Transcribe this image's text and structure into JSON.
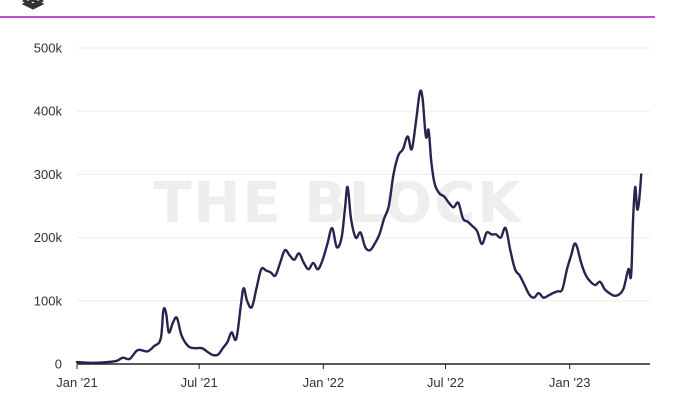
{
  "colors": {
    "accent_rule": "#b010b8",
    "line": "#2a2350",
    "grid": "#ececec",
    "axis": "#222222",
    "text": "#333333",
    "watermark": "#eeeeee",
    "logo": "#333333"
  },
  "icons": {
    "logo": "the-block-logo-icon"
  },
  "watermark_text": "THE BLOCK",
  "chart_data": {
    "type": "line",
    "title": "",
    "xlabel": "",
    "ylabel": "",
    "x_range": [
      "2021-01-01",
      "2023-04-30"
    ],
    "ylim": [
      0,
      500000
    ],
    "grid": true,
    "legend": "none",
    "y_ticks": [
      {
        "value": 0,
        "label": "0"
      },
      {
        "value": 100000,
        "label": "100k"
      },
      {
        "value": 200000,
        "label": "200k"
      },
      {
        "value": 300000,
        "label": "300k"
      },
      {
        "value": 400000,
        "label": "400k"
      },
      {
        "value": 500000,
        "label": "500k"
      }
    ],
    "x_ticks": [
      {
        "date": "2021-01-01",
        "label": "Jan '21"
      },
      {
        "date": "2021-07-01",
        "label": "Jul '21"
      },
      {
        "date": "2022-01-01",
        "label": "Jan '22"
      },
      {
        "date": "2022-07-01",
        "label": "Jul '22"
      },
      {
        "date": "2023-01-01",
        "label": "Jan '23"
      }
    ],
    "series": [
      {
        "name": "",
        "color": "#2a2350",
        "points": [
          [
            "2021-01-01",
            3000
          ],
          [
            "2021-01-15",
            2000
          ],
          [
            "2021-02-01",
            2000
          ],
          [
            "2021-02-15",
            3000
          ],
          [
            "2021-03-01",
            5000
          ],
          [
            "2021-03-10",
            10000
          ],
          [
            "2021-03-20",
            8000
          ],
          [
            "2021-04-01",
            22000
          ],
          [
            "2021-04-15",
            20000
          ],
          [
            "2021-04-25",
            28000
          ],
          [
            "2021-05-05",
            40000
          ],
          [
            "2021-05-09",
            85000
          ],
          [
            "2021-05-13",
            80000
          ],
          [
            "2021-05-17",
            50000
          ],
          [
            "2021-05-23",
            65000
          ],
          [
            "2021-05-29",
            73000
          ],
          [
            "2021-06-05",
            45000
          ],
          [
            "2021-06-15",
            28000
          ],
          [
            "2021-06-25",
            25000
          ],
          [
            "2021-07-05",
            25000
          ],
          [
            "2021-07-15",
            18000
          ],
          [
            "2021-07-22",
            14000
          ],
          [
            "2021-07-29",
            15000
          ],
          [
            "2021-08-05",
            25000
          ],
          [
            "2021-08-12",
            35000
          ],
          [
            "2021-08-18",
            50000
          ],
          [
            "2021-08-25",
            40000
          ],
          [
            "2021-09-01",
            95000
          ],
          [
            "2021-09-05",
            120000
          ],
          [
            "2021-09-10",
            100000
          ],
          [
            "2021-09-17",
            90000
          ],
          [
            "2021-09-24",
            120000
          ],
          [
            "2021-10-01",
            150000
          ],
          [
            "2021-10-08",
            148000
          ],
          [
            "2021-10-15",
            145000
          ],
          [
            "2021-10-22",
            140000
          ],
          [
            "2021-10-29",
            160000
          ],
          [
            "2021-11-05",
            180000
          ],
          [
            "2021-11-12",
            172000
          ],
          [
            "2021-11-19",
            165000
          ],
          [
            "2021-11-26",
            175000
          ],
          [
            "2021-12-03",
            160000
          ],
          [
            "2021-12-10",
            150000
          ],
          [
            "2021-12-17",
            160000
          ],
          [
            "2021-12-24",
            150000
          ],
          [
            "2021-12-31",
            165000
          ],
          [
            "2022-01-07",
            190000
          ],
          [
            "2022-01-14",
            215000
          ],
          [
            "2022-01-21",
            185000
          ],
          [
            "2022-01-28",
            200000
          ],
          [
            "2022-02-02",
            245000
          ],
          [
            "2022-02-06",
            280000
          ],
          [
            "2022-02-11",
            230000
          ],
          [
            "2022-02-18",
            200000
          ],
          [
            "2022-02-25",
            208000
          ],
          [
            "2022-03-04",
            185000
          ],
          [
            "2022-03-11",
            180000
          ],
          [
            "2022-03-18",
            190000
          ],
          [
            "2022-03-25",
            205000
          ],
          [
            "2022-04-01",
            230000
          ],
          [
            "2022-04-08",
            250000
          ],
          [
            "2022-04-15",
            300000
          ],
          [
            "2022-04-22",
            330000
          ],
          [
            "2022-04-29",
            340000
          ],
          [
            "2022-05-06",
            360000
          ],
          [
            "2022-05-12",
            340000
          ],
          [
            "2022-05-19",
            390000
          ],
          [
            "2022-05-24",
            430000
          ],
          [
            "2022-05-28",
            420000
          ],
          [
            "2022-06-02",
            360000
          ],
          [
            "2022-06-06",
            370000
          ],
          [
            "2022-06-10",
            320000
          ],
          [
            "2022-06-15",
            285000
          ],
          [
            "2022-06-22",
            270000
          ],
          [
            "2022-06-29",
            265000
          ],
          [
            "2022-07-06",
            255000
          ],
          [
            "2022-07-13",
            248000
          ],
          [
            "2022-07-20",
            255000
          ],
          [
            "2022-07-27",
            230000
          ],
          [
            "2022-08-03",
            225000
          ],
          [
            "2022-08-10",
            218000
          ],
          [
            "2022-08-17",
            210000
          ],
          [
            "2022-08-24",
            190000
          ],
          [
            "2022-08-31",
            208000
          ],
          [
            "2022-09-07",
            205000
          ],
          [
            "2022-09-14",
            205000
          ],
          [
            "2022-09-21",
            200000
          ],
          [
            "2022-09-28",
            215000
          ],
          [
            "2022-10-05",
            180000
          ],
          [
            "2022-10-12",
            150000
          ],
          [
            "2022-10-19",
            140000
          ],
          [
            "2022-10-26",
            125000
          ],
          [
            "2022-11-02",
            110000
          ],
          [
            "2022-11-09",
            105000
          ],
          [
            "2022-11-16",
            112000
          ],
          [
            "2022-11-23",
            105000
          ],
          [
            "2022-11-30",
            108000
          ],
          [
            "2022-12-07",
            112000
          ],
          [
            "2022-12-14",
            115000
          ],
          [
            "2022-12-21",
            118000
          ],
          [
            "2022-12-28",
            150000
          ],
          [
            "2023-01-04",
            175000
          ],
          [
            "2023-01-08",
            190000
          ],
          [
            "2023-01-12",
            185000
          ],
          [
            "2023-01-18",
            160000
          ],
          [
            "2023-01-25",
            140000
          ],
          [
            "2023-02-01",
            130000
          ],
          [
            "2023-02-08",
            125000
          ],
          [
            "2023-02-15",
            130000
          ],
          [
            "2023-02-22",
            118000
          ],
          [
            "2023-03-01",
            112000
          ],
          [
            "2023-03-08",
            108000
          ],
          [
            "2023-03-15",
            110000
          ],
          [
            "2023-03-22",
            120000
          ],
          [
            "2023-03-29",
            150000
          ],
          [
            "2023-04-02",
            140000
          ],
          [
            "2023-04-05",
            230000
          ],
          [
            "2023-04-08",
            280000
          ],
          [
            "2023-04-11",
            245000
          ],
          [
            "2023-04-14",
            260000
          ],
          [
            "2023-04-17",
            300000
          ]
        ]
      }
    ]
  }
}
